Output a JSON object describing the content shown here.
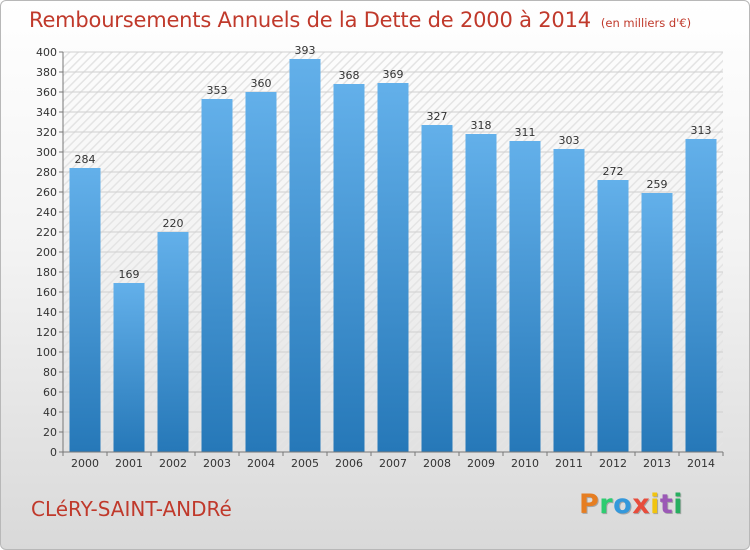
{
  "header": {
    "title": "Remboursements Annuels de la Dette de 2000 à 2014",
    "subtitle": "(en milliers d'€)"
  },
  "footer": {
    "town": "CLéRY-SAINT-ANDRé",
    "logo": [
      "P",
      "r",
      "o",
      "x",
      "i",
      "t",
      "i"
    ],
    "logo_colors": [
      "#e67e22",
      "#2ecc71",
      "#3498db",
      "#e74c3c",
      "#f1c40f",
      "#9b59b6",
      "#27ae60"
    ]
  },
  "colors": {
    "bar_light": "#63b0ea",
    "bar_dark": "#2678b8",
    "accent": "#c0392b"
  },
  "chart_data": {
    "type": "bar",
    "title": "Remboursements Annuels de la Dette de 2000 à 2014",
    "subtitle": "(en milliers d'€)",
    "xlabel": "",
    "ylabel": "",
    "categories": [
      "2000",
      "2001",
      "2002",
      "2003",
      "2004",
      "2005",
      "2006",
      "2007",
      "2008",
      "2009",
      "2010",
      "2011",
      "2012",
      "2013",
      "2014"
    ],
    "values": [
      284,
      169,
      220,
      353,
      360,
      393,
      368,
      369,
      327,
      318,
      311,
      303,
      272,
      259,
      313
    ],
    "ylim": [
      0,
      400
    ],
    "ytick_step": 20,
    "grid": true,
    "legend": "none"
  }
}
